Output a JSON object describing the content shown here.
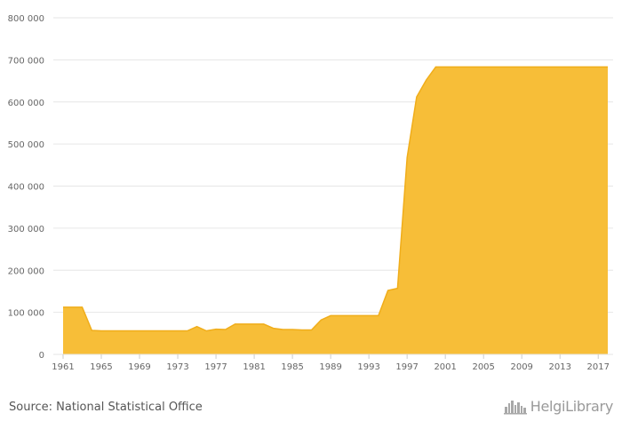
{
  "chart_data": {
    "type": "area",
    "x": [
      1961,
      1962,
      1963,
      1964,
      1965,
      1966,
      1967,
      1968,
      1969,
      1970,
      1971,
      1972,
      1973,
      1974,
      1975,
      1976,
      1977,
      1978,
      1979,
      1980,
      1981,
      1982,
      1983,
      1984,
      1985,
      1986,
      1987,
      1988,
      1989,
      1990,
      1991,
      1992,
      1993,
      1994,
      1995,
      1996,
      1997,
      1998,
      1999,
      2000,
      2001,
      2002,
      2003,
      2004,
      2005,
      2006,
      2007,
      2008,
      2009,
      2010,
      2011,
      2012,
      2013,
      2014,
      2015,
      2016,
      2017,
      2018
    ],
    "values": [
      112000,
      112000,
      112000,
      57000,
      56000,
      56000,
      56000,
      56000,
      56000,
      56000,
      56000,
      56000,
      56000,
      56000,
      66000,
      56000,
      60000,
      59000,
      72000,
      72000,
      72000,
      72000,
      62000,
      59000,
      59000,
      58000,
      58000,
      82000,
      92000,
      92000,
      92000,
      92000,
      92000,
      92000,
      152000,
      157000,
      468000,
      612000,
      652000,
      683000,
      683000,
      683000,
      683000,
      683000,
      683000,
      683000,
      683000,
      683000,
      683000,
      683000,
      683000,
      683000,
      683000,
      683000,
      683000,
      683000,
      683000,
      683000
    ],
    "x_ticks": [
      "1961",
      "1965",
      "1969",
      "1973",
      "1977",
      "1981",
      "1985",
      "1989",
      "1993",
      "1997",
      "2001",
      "2005",
      "2009",
      "2013",
      "2017"
    ],
    "y_ticks": [
      "0",
      "100 000",
      "200 000",
      "300 000",
      "400 000",
      "500 000",
      "600 000",
      "700 000",
      "800 000"
    ],
    "ylim": [
      0,
      800000
    ],
    "grid": true,
    "colors": {
      "fill": "#f7be38",
      "line": "#f0ad1a"
    }
  },
  "footer": {
    "source": "Source: National Statistical Office",
    "brand": "HelgiLibrary",
    "brand_icon": "city-skyline-icon"
  }
}
